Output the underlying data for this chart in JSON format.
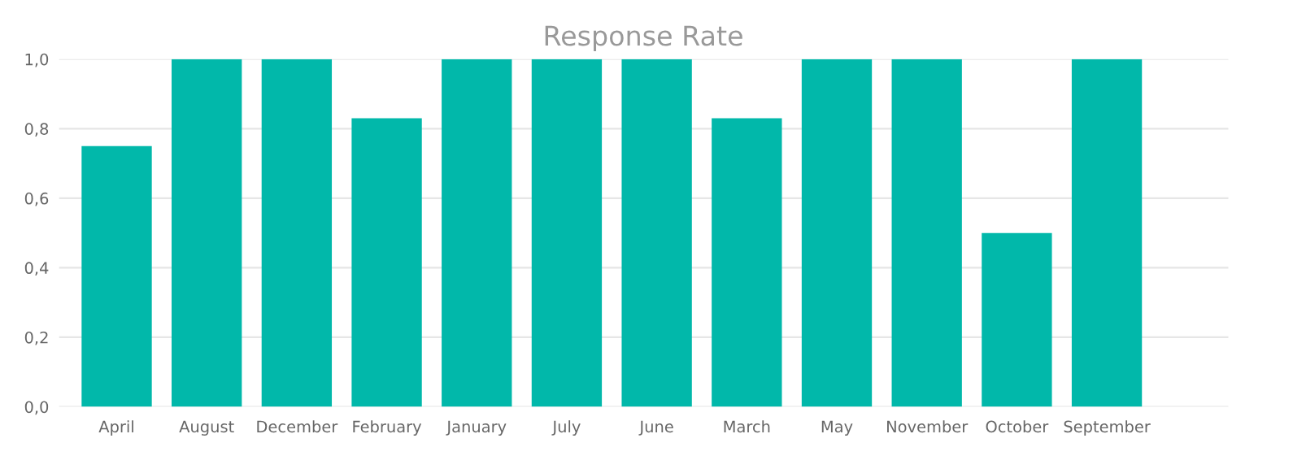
{
  "chart_data": {
    "type": "bar",
    "title": "Response Rate",
    "categories": [
      "April",
      "August",
      "December",
      "February",
      "January",
      "July",
      "June",
      "March",
      "May",
      "November",
      "October",
      "September"
    ],
    "values": [
      0.75,
      1.0,
      1.0,
      0.83,
      1.0,
      1.0,
      1.0,
      0.83,
      1.0,
      1.0,
      0.5,
      1.0
    ],
    "color": "#01b8aa",
    "ylim": [
      0,
      1.0
    ],
    "yticks": [
      {
        "value": 0,
        "label": "0,0"
      },
      {
        "value": 0.2,
        "label": "0,2"
      },
      {
        "value": 0.4,
        "label": "0,4"
      },
      {
        "value": 0.6,
        "label": "0,6"
      },
      {
        "value": 0.8,
        "label": "0,8"
      },
      {
        "value": 1.0,
        "label": "1,0"
      }
    ],
    "grid": "y"
  }
}
